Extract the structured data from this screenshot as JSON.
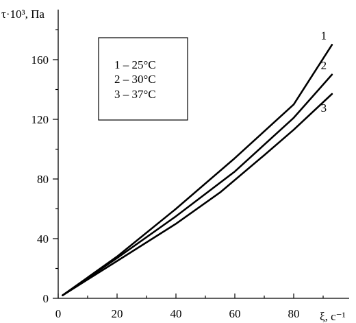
{
  "chart_data": {
    "type": "line",
    "ylabel": "τ·10³, Па",
    "xlabel": "ξ, с⁻¹",
    "xlim": [
      0,
      90
    ],
    "ylim": [
      0,
      180
    ],
    "xticks": [
      0,
      20,
      40,
      60,
      80
    ],
    "yticks": [
      0,
      40,
      80,
      120,
      160
    ],
    "grid": false,
    "legend_position": "top-left",
    "legend": [
      "1 – 25°C",
      "2 – 30°C",
      "3 – 37°C"
    ],
    "series": [
      {
        "label": "1",
        "x": [
          1.5,
          20,
          40,
          60,
          80,
          93
        ],
        "y": [
          2,
          28,
          60,
          94,
          130,
          170
        ],
        "color": "#000000"
      },
      {
        "label": "2",
        "x": [
          1.5,
          20,
          40,
          60,
          80,
          93
        ],
        "y": [
          2,
          27,
          55,
          85,
          121,
          150
        ],
        "color": "#000000"
      },
      {
        "label": "3",
        "x": [
          1.5,
          20,
          40,
          55,
          70,
          80,
          93
        ],
        "y": [
          2,
          25,
          50,
          71,
          96,
          113,
          137
        ],
        "color": "#000000"
      }
    ]
  }
}
